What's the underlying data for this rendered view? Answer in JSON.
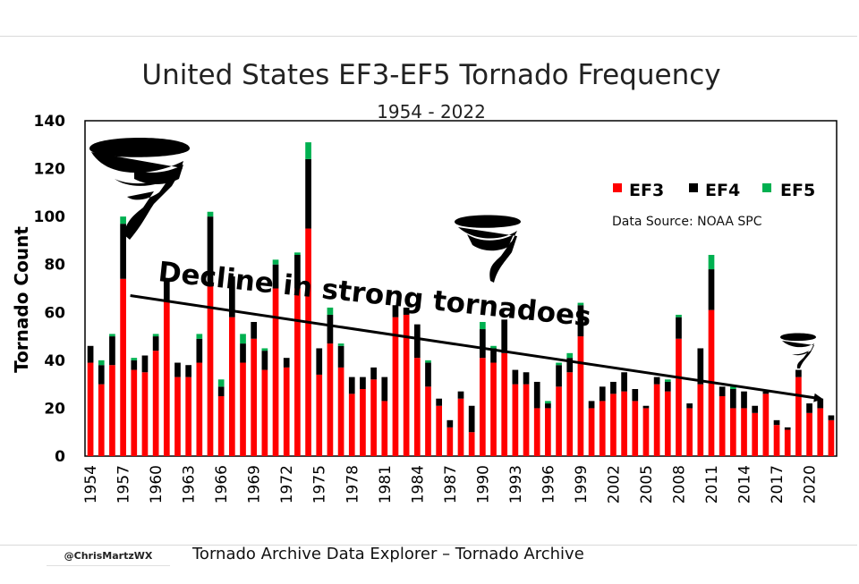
{
  "chart_data": {
    "type": "bar",
    "stacked": true,
    "title": "United States EF3-EF5 Tornado Frequency",
    "subtitle": "1954 - 2022",
    "ylabel": "Tornado Count",
    "xlabel": "",
    "ylim": [
      0,
      140
    ],
    "yticks": [
      "0",
      "20",
      "40",
      "60",
      "80",
      "100",
      "120",
      "140"
    ],
    "x": [
      1954,
      1955,
      1956,
      1957,
      1958,
      1959,
      1960,
      1961,
      1962,
      1963,
      1964,
      1965,
      1966,
      1967,
      1968,
      1969,
      1970,
      1971,
      1972,
      1973,
      1974,
      1975,
      1976,
      1977,
      1978,
      1979,
      1980,
      1981,
      1982,
      1983,
      1984,
      1985,
      1986,
      1987,
      1988,
      1989,
      1990,
      1991,
      1992,
      1993,
      1994,
      1995,
      1996,
      1997,
      1998,
      1999,
      2000,
      2001,
      2002,
      2003,
      2004,
      2005,
      2006,
      2007,
      2008,
      2009,
      2010,
      2011,
      2012,
      2013,
      2014,
      2015,
      2016,
      2017,
      2018,
      2019,
      2020,
      2021,
      2022
    ],
    "xtick_labels": [
      "1954",
      "1957",
      "1960",
      "1963",
      "1966",
      "1969",
      "1972",
      "1975",
      "1978",
      "1981",
      "1984",
      "1987",
      "1990",
      "1993",
      "1996",
      "1999",
      "2002",
      "2005",
      "2008",
      "2011",
      "2014",
      "2017",
      "2020"
    ],
    "series": [
      {
        "name": "EF3",
        "color": "#ff0000",
        "values": [
          39,
          30,
          38,
          74,
          36,
          35,
          44,
          65,
          33,
          33,
          39,
          71,
          25,
          58,
          39,
          49,
          36,
          70,
          37,
          70,
          95,
          34,
          47,
          37,
          26,
          28,
          32,
          23,
          58,
          59,
          41,
          29,
          21,
          12,
          24,
          10,
          41,
          39,
          43,
          30,
          30,
          20,
          20,
          29,
          35,
          50,
          20,
          23,
          26,
          27,
          23,
          20,
          30,
          27,
          49,
          20,
          30,
          61,
          25,
          20,
          20,
          18,
          26,
          13,
          11,
          33,
          18,
          20,
          15
        ]
      },
      {
        "name": "EF4",
        "color": "#000000",
        "values": [
          7,
          8,
          12,
          23,
          4,
          7,
          6,
          8,
          6,
          5,
          10,
          29,
          4,
          17,
          8,
          7,
          8,
          10,
          4,
          14,
          29,
          11,
          12,
          9,
          7,
          5,
          5,
          10,
          5,
          3,
          14,
          10,
          3,
          3,
          3,
          11,
          12,
          6,
          14,
          6,
          5,
          11,
          2,
          9,
          6,
          13,
          3,
          6,
          5,
          8,
          5,
          1,
          3,
          4,
          9,
          2,
          15,
          17,
          4,
          8,
          7,
          3,
          1,
          2,
          1,
          3,
          4,
          4,
          2
        ]
      },
      {
        "name": "EF5",
        "color": "#00b050",
        "values": [
          0,
          2,
          1,
          3,
          1,
          0,
          1,
          0,
          0,
          0,
          2,
          2,
          3,
          0,
          4,
          0,
          1,
          2,
          0,
          1,
          7,
          0,
          3,
          1,
          0,
          0,
          0,
          0,
          0,
          0,
          0,
          1,
          0,
          0,
          0,
          0,
          3,
          1,
          0,
          0,
          0,
          0,
          1,
          1,
          2,
          1,
          0,
          0,
          0,
          0,
          0,
          0,
          0,
          1,
          1,
          0,
          0,
          6,
          0,
          1,
          0,
          0,
          0,
          0,
          0,
          0,
          0,
          0,
          0
        ]
      }
    ],
    "legend_position": "top-right",
    "grid": false,
    "trendline": {
      "x": [
        1957,
        2021
      ],
      "y": [
        67,
        24
      ]
    },
    "annotations": [
      {
        "text": "Decline in strong tornadoes"
      },
      {
        "text": "Data Source: NOAA SPC"
      }
    ]
  },
  "footer": {
    "credit": "@ChrisMartzWX",
    "source": "Tornado Archive Data Explorer – Tornado Archive"
  },
  "icons": [
    "large-tornado-icon",
    "medium-tornado-icon",
    "small-tornado-icon"
  ]
}
